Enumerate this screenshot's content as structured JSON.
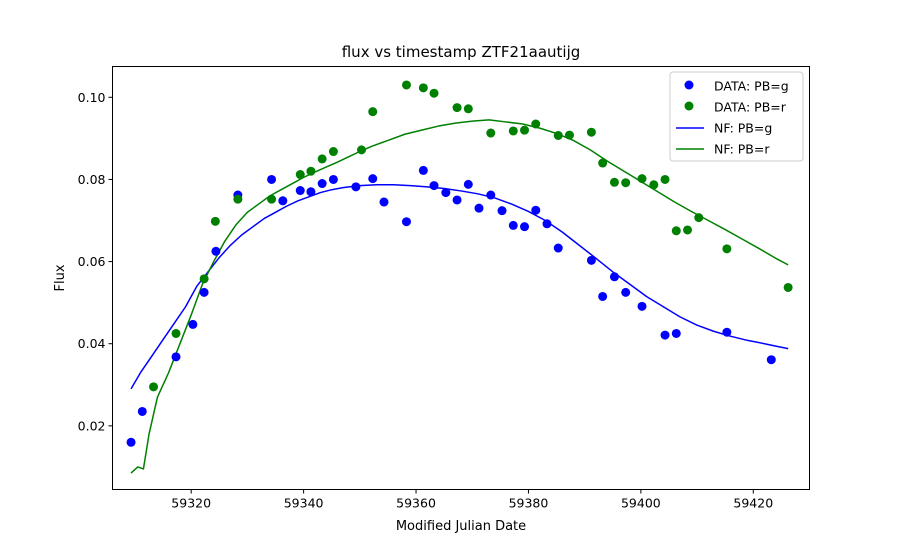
{
  "chart_data": {
    "type": "scatter",
    "title": "flux vs timestamp ZTF21aautijg",
    "xlabel": "Modified Julian Date",
    "ylabel": "Flux",
    "xlim": [
      59306,
      59430
    ],
    "ylim": [
      0.0045,
      0.1075
    ],
    "xticks": [
      59320,
      59340,
      59360,
      59380,
      59400,
      59420
    ],
    "yticks": [
      0.02,
      0.04,
      0.06,
      0.08,
      0.1
    ],
    "grid": false,
    "legend_position": "top-right",
    "series": [
      {
        "name": "DATA: PB=g",
        "kind": "scatter",
        "color": "#0000ff",
        "points": [
          [
            59309.3,
            0.016
          ],
          [
            59311.3,
            0.0235
          ],
          [
            59317.3,
            0.0368
          ],
          [
            59320.3,
            0.0447
          ],
          [
            59322.3,
            0.0525
          ],
          [
            59324.4,
            0.0625
          ],
          [
            59328.3,
            0.0762
          ],
          [
            59334.3,
            0.08
          ],
          [
            59336.3,
            0.0748
          ],
          [
            59339.4,
            0.0773
          ],
          [
            59341.3,
            0.077
          ],
          [
            59343.3,
            0.079
          ],
          [
            59345.3,
            0.08
          ],
          [
            59349.3,
            0.0782
          ],
          [
            59352.3,
            0.0802
          ],
          [
            59354.3,
            0.0745
          ],
          [
            59358.3,
            0.0697
          ],
          [
            59361.3,
            0.0822
          ],
          [
            59363.2,
            0.0785
          ],
          [
            59365.3,
            0.0768
          ],
          [
            59367.3,
            0.075
          ],
          [
            59369.3,
            0.0788
          ],
          [
            59371.2,
            0.073
          ],
          [
            59373.3,
            0.0762
          ],
          [
            59375.3,
            0.0724
          ],
          [
            59377.3,
            0.0688
          ],
          [
            59379.3,
            0.0685
          ],
          [
            59381.3,
            0.0725
          ],
          [
            59383.3,
            0.0692
          ],
          [
            59385.3,
            0.0633
          ],
          [
            59391.2,
            0.0603
          ],
          [
            59393.2,
            0.0515
          ],
          [
            59395.3,
            0.0563
          ],
          [
            59397.3,
            0.0525
          ],
          [
            59400.2,
            0.0491
          ],
          [
            59404.3,
            0.0421
          ],
          [
            59406.3,
            0.0425
          ],
          [
            59415.3,
            0.0428
          ],
          [
            59423.2,
            0.0361
          ]
        ]
      },
      {
        "name": "DATA: PB=r",
        "kind": "scatter",
        "color": "#008000",
        "points": [
          [
            59313.3,
            0.0295
          ],
          [
            59317.3,
            0.0425
          ],
          [
            59322.3,
            0.0558
          ],
          [
            59324.3,
            0.0698
          ],
          [
            59328.3,
            0.0752
          ],
          [
            59334.3,
            0.0752
          ],
          [
            59339.4,
            0.0812
          ],
          [
            59341.3,
            0.082
          ],
          [
            59343.3,
            0.085
          ],
          [
            59345.3,
            0.0868
          ],
          [
            59350.3,
            0.0872
          ],
          [
            59352.3,
            0.0965
          ],
          [
            59358.3,
            0.103
          ],
          [
            59361.3,
            0.1023
          ],
          [
            59363.2,
            0.101
          ],
          [
            59367.3,
            0.0975
          ],
          [
            59369.3,
            0.0972
          ],
          [
            59373.3,
            0.0913
          ],
          [
            59377.3,
            0.0918
          ],
          [
            59379.3,
            0.092
          ],
          [
            59381.3,
            0.0935
          ],
          [
            59385.3,
            0.0907
          ],
          [
            59387.3,
            0.0908
          ],
          [
            59391.2,
            0.0915
          ],
          [
            59393.2,
            0.084
          ],
          [
            59395.3,
            0.0793
          ],
          [
            59397.3,
            0.0792
          ],
          [
            59400.2,
            0.0802
          ],
          [
            59402.3,
            0.0787
          ],
          [
            59404.3,
            0.08
          ],
          [
            59406.3,
            0.0675
          ],
          [
            59408.3,
            0.0677
          ],
          [
            59410.3,
            0.0707
          ],
          [
            59415.3,
            0.0631
          ],
          [
            59426.2,
            0.0537
          ]
        ]
      },
      {
        "name": "NF: PB=g",
        "kind": "line",
        "color": "#0000ff",
        "points": [
          [
            59309.3,
            0.029
          ],
          [
            59311,
            0.033
          ],
          [
            59313,
            0.037
          ],
          [
            59315,
            0.041
          ],
          [
            59317,
            0.045
          ],
          [
            59319,
            0.049
          ],
          [
            59321,
            0.054
          ],
          [
            59323,
            0.0575
          ],
          [
            59325,
            0.061
          ],
          [
            59327,
            0.064
          ],
          [
            59329,
            0.0665
          ],
          [
            59331,
            0.0685
          ],
          [
            59333,
            0.0705
          ],
          [
            59335,
            0.072
          ],
          [
            59337,
            0.0735
          ],
          [
            59339,
            0.0748
          ],
          [
            59341,
            0.0758
          ],
          [
            59343,
            0.0768
          ],
          [
            59345,
            0.0775
          ],
          [
            59347,
            0.078
          ],
          [
            59350,
            0.0785
          ],
          [
            59353,
            0.0787
          ],
          [
            59356,
            0.0787
          ],
          [
            59359,
            0.0785
          ],
          [
            59362,
            0.0782
          ],
          [
            59365,
            0.0778
          ],
          [
            59368,
            0.0772
          ],
          [
            59371,
            0.0765
          ],
          [
            59374,
            0.0755
          ],
          [
            59377,
            0.074
          ],
          [
            59380,
            0.0722
          ],
          [
            59383,
            0.07
          ],
          [
            59386,
            0.0672
          ],
          [
            59389,
            0.064
          ],
          [
            59392,
            0.0608
          ],
          [
            59395,
            0.0575
          ],
          [
            59398,
            0.0545
          ],
          [
            59401,
            0.0515
          ],
          [
            59404,
            0.049
          ],
          [
            59407,
            0.0465
          ],
          [
            59410,
            0.0445
          ],
          [
            59413,
            0.043
          ],
          [
            59416,
            0.0418
          ],
          [
            59419,
            0.0408
          ],
          [
            59422,
            0.04
          ],
          [
            59424,
            0.0394
          ],
          [
            59426.2,
            0.0388
          ]
        ]
      },
      {
        "name": "NF: PB=r",
        "kind": "line",
        "color": "#008000",
        "points": [
          [
            59309.3,
            0.0085
          ],
          [
            59310.5,
            0.01
          ],
          [
            59311.5,
            0.0095
          ],
          [
            59312.5,
            0.018
          ],
          [
            59314,
            0.027
          ],
          [
            59316,
            0.033
          ],
          [
            59318,
            0.04
          ],
          [
            59320,
            0.047
          ],
          [
            59322,
            0.0545
          ],
          [
            59324,
            0.06
          ],
          [
            59326,
            0.065
          ],
          [
            59328,
            0.069
          ],
          [
            59330,
            0.072
          ],
          [
            59332,
            0.074
          ],
          [
            59334,
            0.076
          ],
          [
            59336,
            0.0775
          ],
          [
            59338,
            0.079
          ],
          [
            59340,
            0.0805
          ],
          [
            59342,
            0.0818
          ],
          [
            59344,
            0.083
          ],
          [
            59346,
            0.0842
          ],
          [
            59348,
            0.0855
          ],
          [
            59350,
            0.0868
          ],
          [
            59352,
            0.088
          ],
          [
            59355,
            0.0895
          ],
          [
            59358,
            0.091
          ],
          [
            59361,
            0.092
          ],
          [
            59364,
            0.093
          ],
          [
            59367,
            0.0937
          ],
          [
            59370,
            0.0942
          ],
          [
            59373,
            0.0945
          ],
          [
            59376,
            0.094
          ],
          [
            59379,
            0.0935
          ],
          [
            59382,
            0.0925
          ],
          [
            59385,
            0.0912
          ],
          [
            59388,
            0.0895
          ],
          [
            59391,
            0.0872
          ],
          [
            59394,
            0.0845
          ],
          [
            59397,
            0.082
          ],
          [
            59400,
            0.0795
          ],
          [
            59403,
            0.077
          ],
          [
            59406,
            0.0745
          ],
          [
            59409,
            0.0722
          ],
          [
            59412,
            0.07
          ],
          [
            59415,
            0.0678
          ],
          [
            59418,
            0.0655
          ],
          [
            59421,
            0.0632
          ],
          [
            59424,
            0.0608
          ],
          [
            59426.2,
            0.0592
          ]
        ]
      }
    ]
  }
}
